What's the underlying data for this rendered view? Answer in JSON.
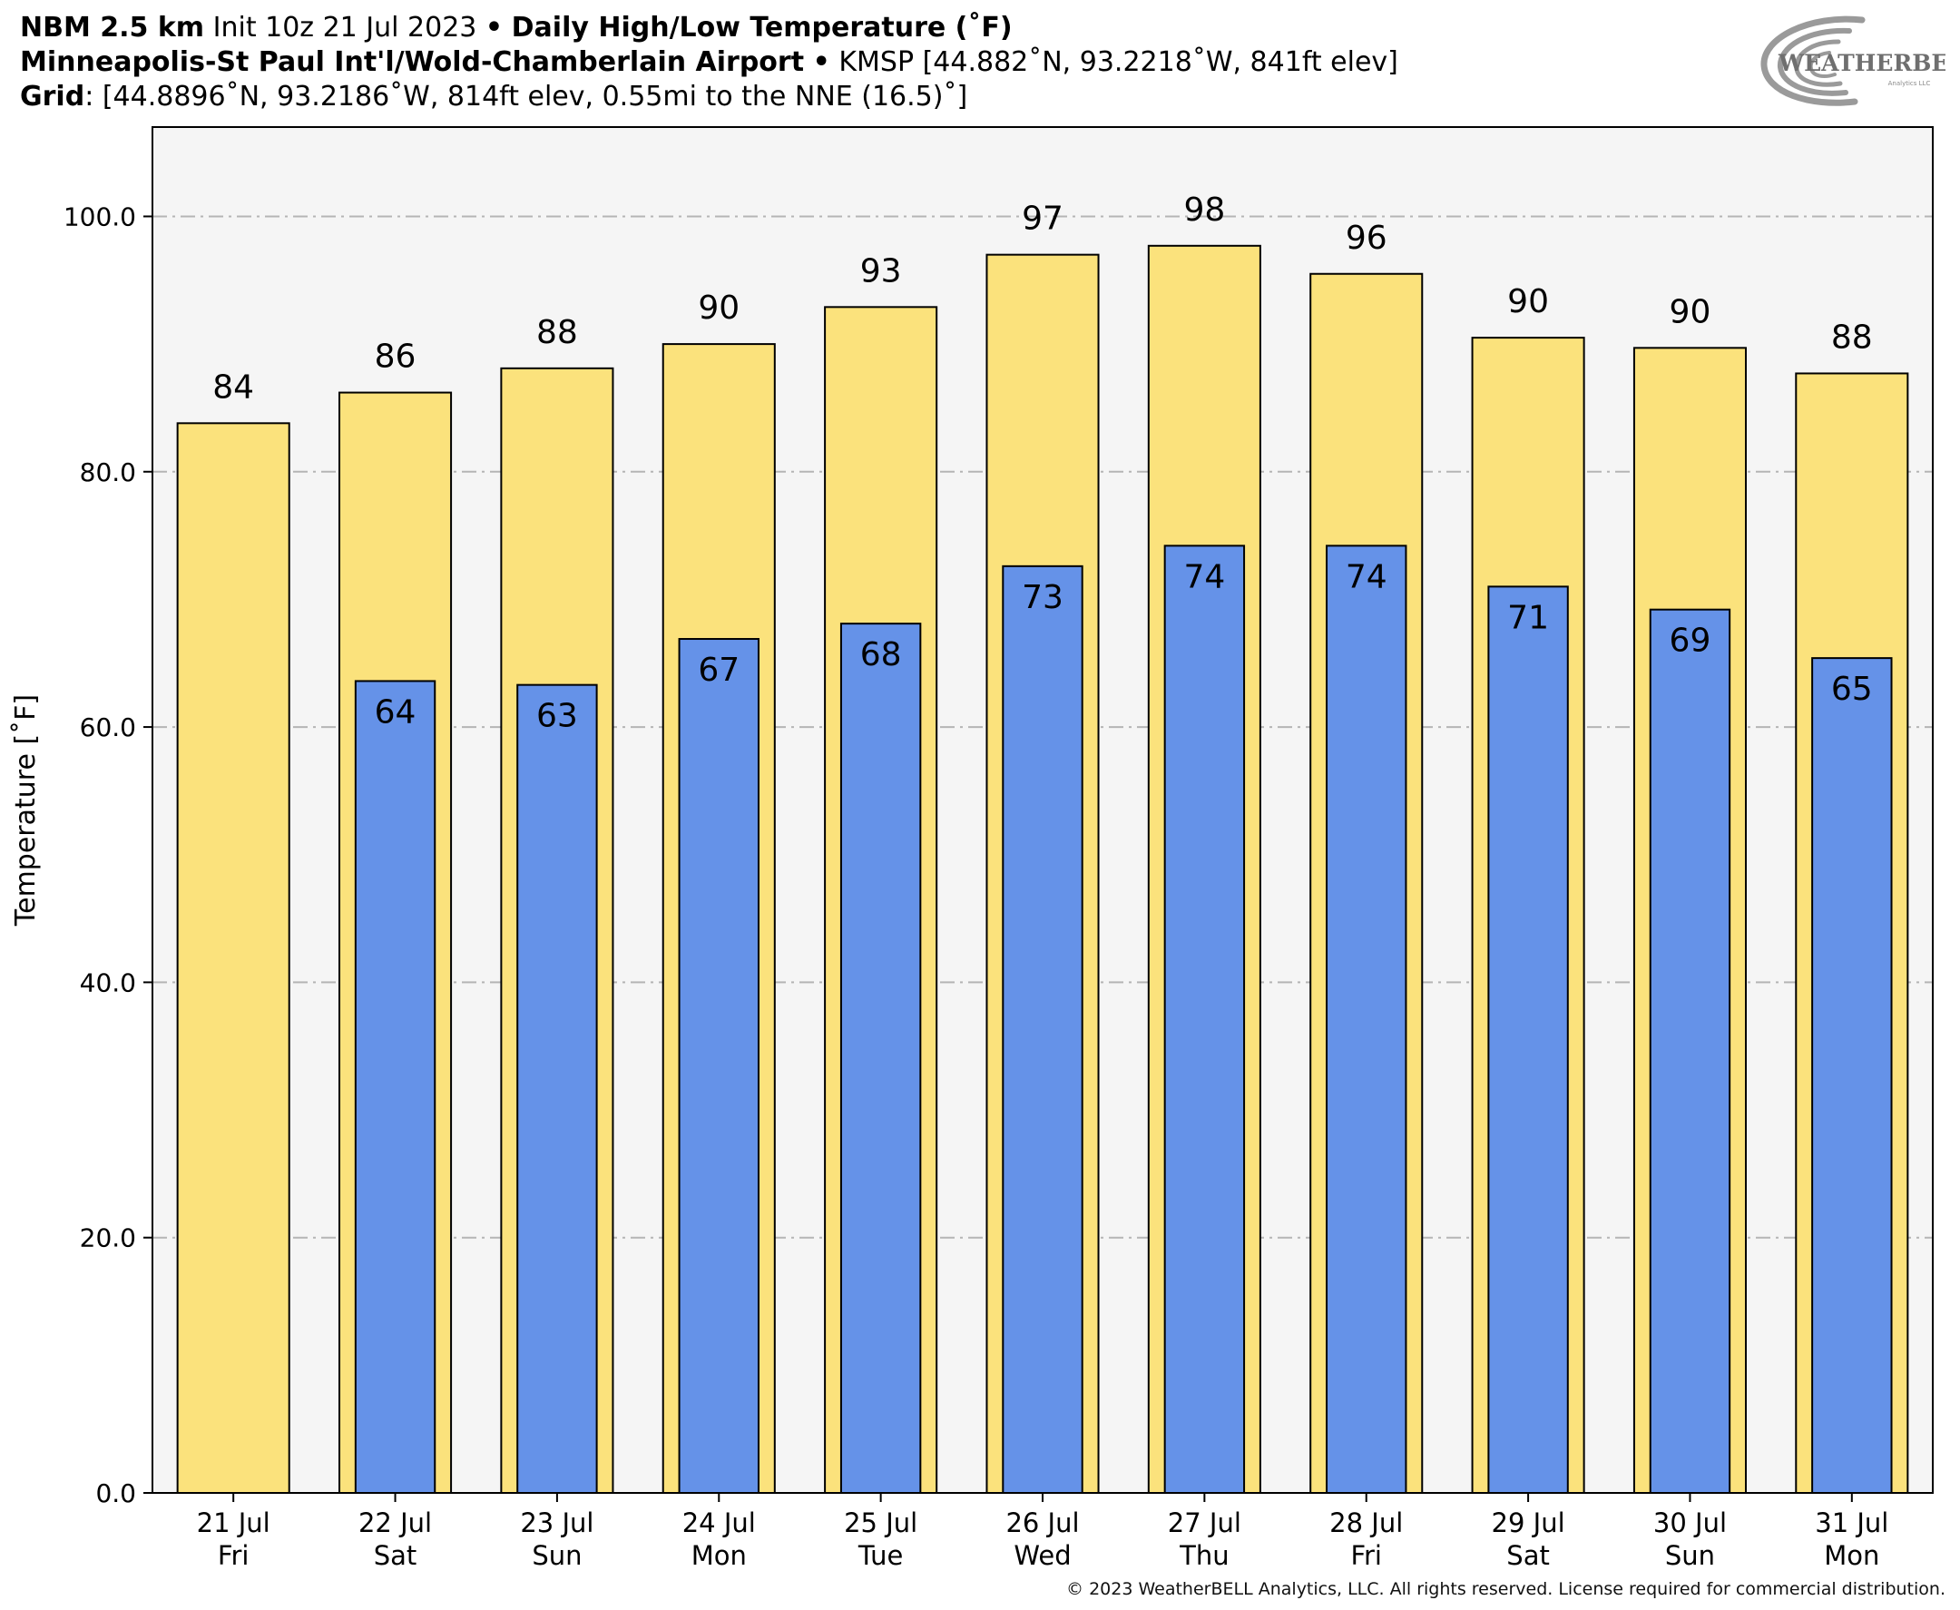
{
  "header": {
    "line1": {
      "model": "NBM 2.5 km",
      "init": "Init 10z 21 Jul 2023",
      "sep": "•",
      "product": "Daily High/Low Temperature (˚F)"
    },
    "line2": {
      "station_name": "Minneapolis-St Paul Int'l/Wold-Chamberlain Airport",
      "sep": "•",
      "station_info": "KMSP [44.882˚N, 93.2218˚W, 841ft elev]"
    },
    "line3": {
      "grid_label": "Grid",
      "grid_info": ": [44.8896˚N, 93.2186˚W, 814ft elev, 0.55mi to the NNE (16.5)˚]"
    }
  },
  "logo": {
    "text": "WEATHERBELL",
    "sub": "Analytics LLC"
  },
  "copyright": "© 2023 WeatherBELL Analytics, LLC. All rights reserved. License required for commercial distribution.",
  "colors": {
    "high_bar": "#fbe27c",
    "low_bar": "#6592e8",
    "plot_bg": "#f5f5f5",
    "grid": "#b5b5b5"
  },
  "chart_data": {
    "type": "bar",
    "ylabel": "Temperature [˚F]",
    "ylim": [
      0,
      107
    ],
    "yticks": [
      "0.0",
      "20.0",
      "40.0",
      "60.0",
      "80.0",
      "100.0"
    ],
    "ytick_values": [
      0,
      20,
      40,
      60,
      80,
      100
    ],
    "grid": true,
    "categories": [
      [
        "21 Jul",
        "Fri"
      ],
      [
        "22 Jul",
        "Sat"
      ],
      [
        "23 Jul",
        "Sun"
      ],
      [
        "24 Jul",
        "Mon"
      ],
      [
        "25 Jul",
        "Tue"
      ],
      [
        "26 Jul",
        "Wed"
      ],
      [
        "27 Jul",
        "Thu"
      ],
      [
        "28 Jul",
        "Fri"
      ],
      [
        "29 Jul",
        "Sat"
      ],
      [
        "30 Jul",
        "Sun"
      ],
      [
        "31 Jul",
        "Mon"
      ]
    ],
    "series": [
      {
        "key": "high",
        "values": [
          83.8,
          86.2,
          88.1,
          90.0,
          92.9,
          97.0,
          97.7,
          95.5,
          90.5,
          89.7,
          87.7
        ],
        "labels": [
          "84",
          "86",
          "88",
          "90",
          "93",
          "97",
          "98",
          "96",
          "90",
          "90",
          "88"
        ]
      },
      {
        "key": "low",
        "values": [
          null,
          63.6,
          63.3,
          66.9,
          68.1,
          72.6,
          74.2,
          74.2,
          71.0,
          69.2,
          65.4
        ],
        "labels": [
          "",
          "64",
          "63",
          "67",
          "68",
          "73",
          "74",
          "74",
          "71",
          "69",
          "65"
        ]
      }
    ]
  }
}
